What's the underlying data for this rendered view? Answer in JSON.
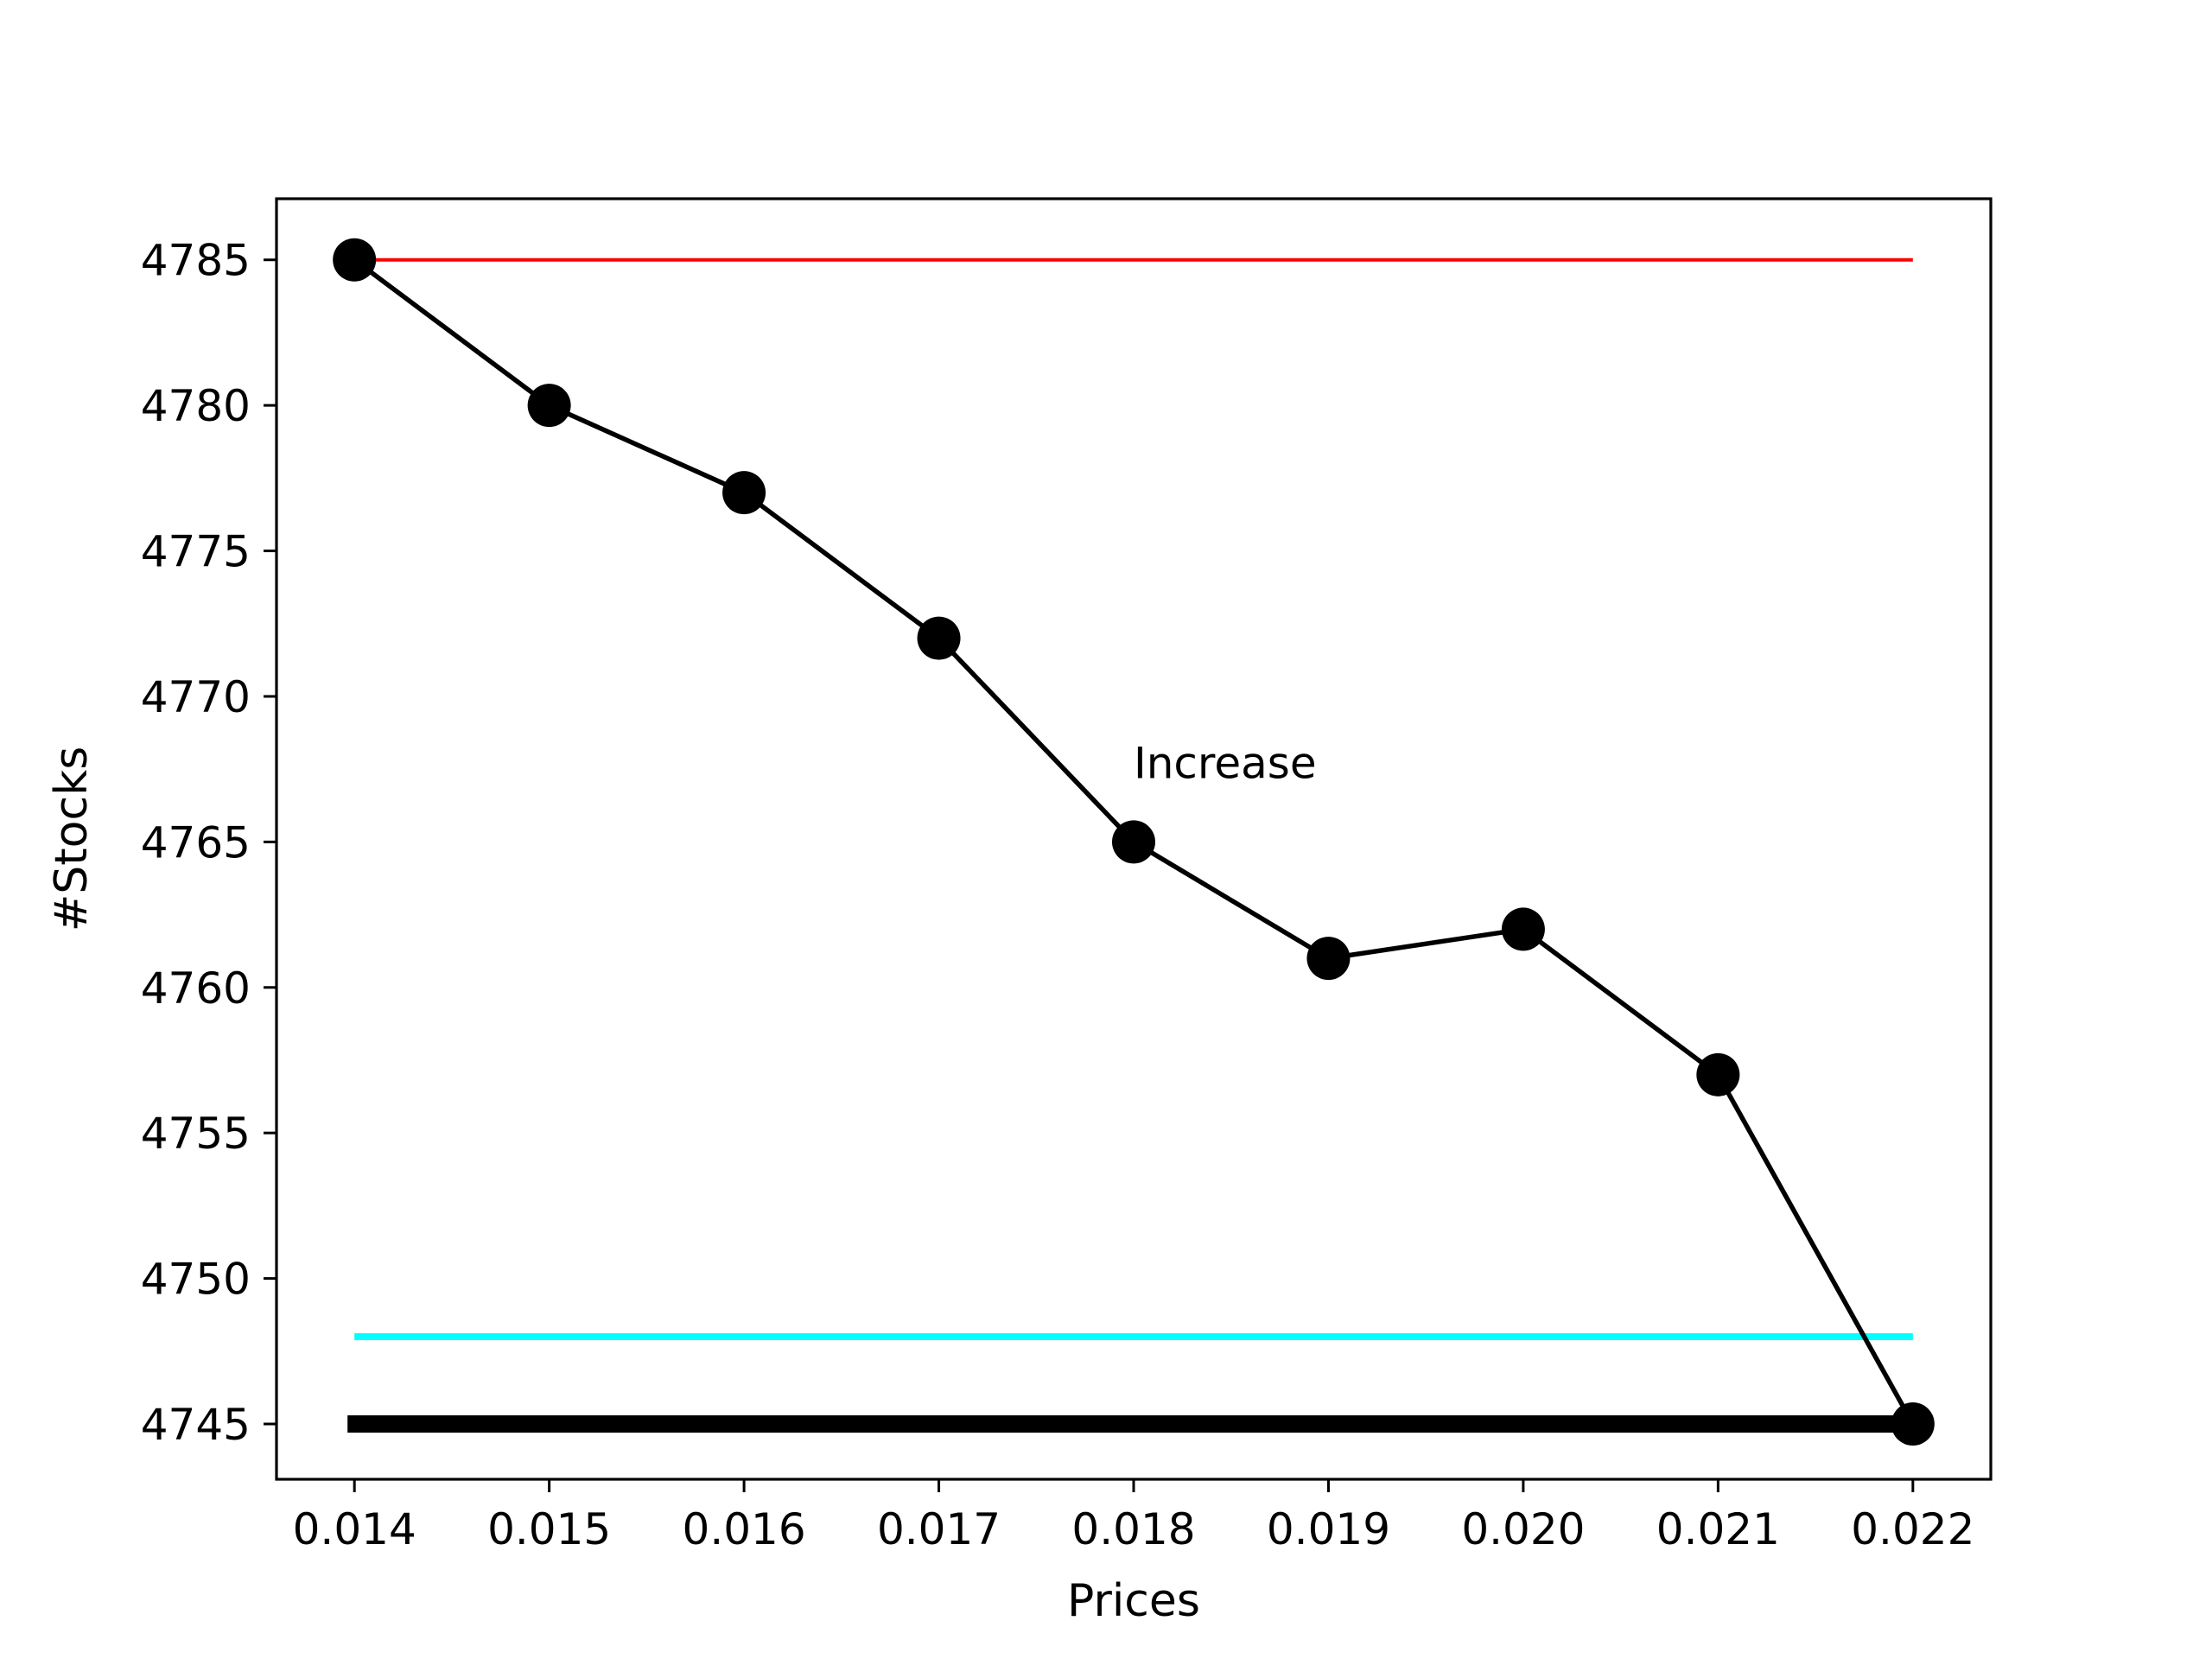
{
  "chart_data": {
    "type": "line",
    "title": "",
    "xlabel": "Prices",
    "ylabel": "#Stocks",
    "xlim": [
      0.0136,
      0.0224
    ],
    "ylim": [
      4743.1,
      4787.1
    ],
    "xticks": [
      0.014,
      0.015,
      0.016,
      0.017,
      0.018,
      0.019,
      0.02,
      0.021,
      0.022
    ],
    "xtick_labels": [
      "0.014",
      "0.015",
      "0.016",
      "0.017",
      "0.018",
      "0.019",
      "0.020",
      "0.021",
      "0.022"
    ],
    "yticks": [
      4745,
      4750,
      4755,
      4760,
      4765,
      4770,
      4775,
      4780,
      4785
    ],
    "ytick_labels": [
      "4745",
      "4750",
      "4755",
      "4760",
      "4765",
      "4770",
      "4775",
      "4780",
      "4785"
    ],
    "grid": false,
    "legend": "none",
    "series": [
      {
        "x": [
          0.014,
          0.015,
          0.016,
          0.017,
          0.018,
          0.019,
          0.02,
          0.021,
          0.022
        ],
        "y": [
          4785,
          4780,
          4777,
          4772,
          4765,
          4761,
          4762,
          4757,
          4745
        ],
        "color": "#000000",
        "marker": "circle"
      }
    ],
    "reference_lines": [
      {
        "y": 4785,
        "x_range": [
          0.014,
          0.022
        ],
        "color": "#ff0000",
        "weight": "thin"
      },
      {
        "y": 4748,
        "x_range": [
          0.014,
          0.022
        ],
        "color": "#00ffff",
        "weight": "medium"
      },
      {
        "y": 4745,
        "x_range": [
          0.014,
          0.022
        ],
        "color": "#000000",
        "weight": "thick"
      }
    ],
    "annotations": [
      {
        "text": "Increase",
        "x": 0.018,
        "y": 4767.2
      }
    ]
  }
}
